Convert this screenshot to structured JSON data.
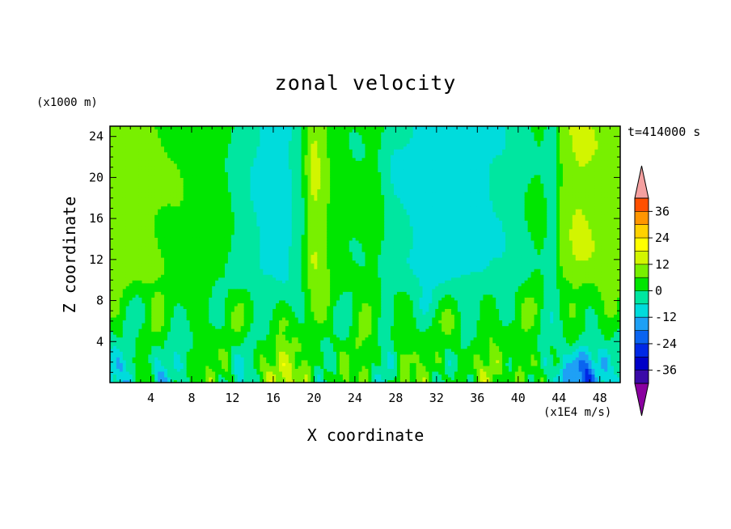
{
  "chart_data": {
    "type": "heatmap",
    "title": "zonal velocity",
    "xlabel": "X coordinate",
    "ylabel": "Z coordinate",
    "y_unit_note": "(x1000 m)",
    "x_unit_note": "(x1E4 m/s)",
    "time_label": "t=414000 s",
    "xlim": [
      0,
      50
    ],
    "ylim": [
      0,
      25
    ],
    "x_ticks": [
      4,
      8,
      12,
      16,
      20,
      24,
      28,
      32,
      36,
      40,
      44,
      48
    ],
    "y_ticks": [
      4,
      8,
      12,
      16,
      20,
      24
    ],
    "colorbar": {
      "levels": [
        -42,
        -36,
        -30,
        -24,
        -18,
        -12,
        -6,
        0,
        6,
        12,
        18,
        24,
        30,
        36,
        42
      ],
      "labels": [
        "36",
        "24",
        "12",
        "0",
        "-12",
        "-24",
        "-36"
      ],
      "label_values": [
        36,
        24,
        12,
        0,
        -12,
        -24,
        -36
      ],
      "colors": [
        "#8a00a0",
        "#3a0aa8",
        "#0000c8",
        "#0028e6",
        "#0a64f0",
        "#1ea0f5",
        "#00dcdc",
        "#00e6a0",
        "#00e600",
        "#78f000",
        "#d2f500",
        "#ffff00",
        "#ffd200",
        "#ff9600",
        "#ff5000",
        "#ff0000",
        "#f4a0a0"
      ],
      "extend": "both"
    },
    "description_samples": {
      "z_profiles_at_x": [
        {
          "x": 2,
          "values": [
            [
              0.5,
              -14
            ],
            [
              3,
              -6
            ],
            [
              8,
              4
            ],
            [
              14,
              10
            ],
            [
              20,
              12
            ],
            [
              24,
              13
            ]
          ]
        },
        {
          "x": 17,
          "values": [
            [
              0.5,
              14
            ],
            [
              3,
              8
            ],
            [
              8,
              2
            ],
            [
              14,
              -12
            ],
            [
              20,
              -8
            ],
            [
              24,
              -4
            ]
          ]
        },
        {
          "x": 20,
          "values": [
            [
              0.5,
              18
            ],
            [
              3,
              10
            ],
            [
              8,
              8
            ],
            [
              14,
              16
            ],
            [
              20,
              10
            ],
            [
              24,
              6
            ]
          ]
        },
        {
          "x": 33,
          "values": [
            [
              0.5,
              10
            ],
            [
              3,
              6
            ],
            [
              8,
              4
            ],
            [
              14,
              -8
            ],
            [
              20,
              -10
            ],
            [
              24,
              -8
            ]
          ]
        },
        {
          "x": 46,
          "values": [
            [
              0.5,
              -30
            ],
            [
              3,
              -10
            ],
            [
              8,
              6
            ],
            [
              14,
              14
            ],
            [
              20,
              12
            ],
            [
              24,
              12
            ]
          ]
        }
      ]
    }
  }
}
